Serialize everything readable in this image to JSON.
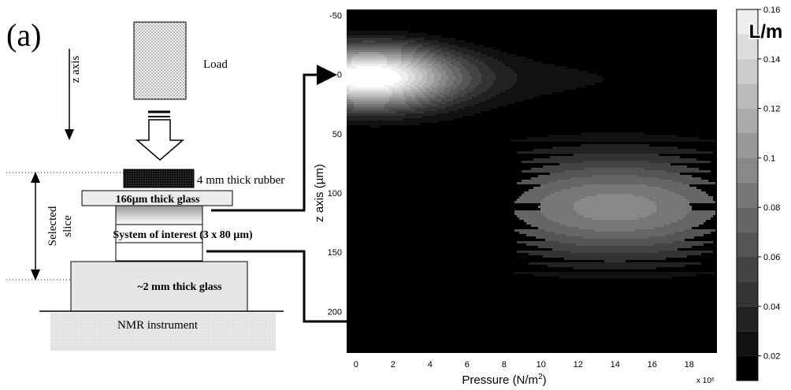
{
  "panel_label": "(a)",
  "schematic": {
    "load_label": "Load",
    "z_axis_label": "z axis",
    "rubber_label": "4 mm thick rubber",
    "thin_glass_label": "166µm thick glass",
    "system_label": "System of interest (3 x 80 µm)",
    "thick_glass_label": "~2 mm thick glass",
    "instrument_label": "NMR instrument",
    "slice_label_1": "Selected",
    "slice_label_2": "slice"
  },
  "colors": {
    "background": "#000000",
    "contour_line": "#ffffff",
    "lowest_fill": "#000000",
    "highest_fill": "#ffffff"
  },
  "chart_data": {
    "type": "heatmap",
    "subtype": "filled contour",
    "xlabel": "Pressure (N/m²)",
    "x_multiplier": "x 10⁶",
    "ylabel": "z axis (µm)",
    "xlim": [
      -0.5,
      19.5
    ],
    "ylim": [
      -55,
      235
    ],
    "y_reversed": true,
    "x_ticks": [
      0,
      2,
      4,
      6,
      8,
      10,
      12,
      14,
      16,
      18
    ],
    "y_ticks": [
      -50,
      0,
      50,
      100,
      150,
      200
    ],
    "colorbar": {
      "title": "L/m",
      "min": 0.01,
      "max": 0.16,
      "ticks": [
        0.02,
        0.04,
        0.06,
        0.08,
        0.1,
        0.12,
        0.14,
        0.16
      ],
      "levels": [
        0.01,
        0.02,
        0.03,
        0.04,
        0.05,
        0.06,
        0.07,
        0.08,
        0.09,
        0.1,
        0.11,
        0.12,
        0.13,
        0.14,
        0.15,
        0.16
      ]
    },
    "features": [
      {
        "name": "upper band",
        "z_center": 2,
        "peak_pressure": 0.8,
        "peak_value": 0.15
      },
      {
        "name": "lower band",
        "z_center": 112,
        "peak_pressure": 14,
        "peak_value": 0.08
      }
    ],
    "grid": false,
    "legend": "colorbar right"
  }
}
